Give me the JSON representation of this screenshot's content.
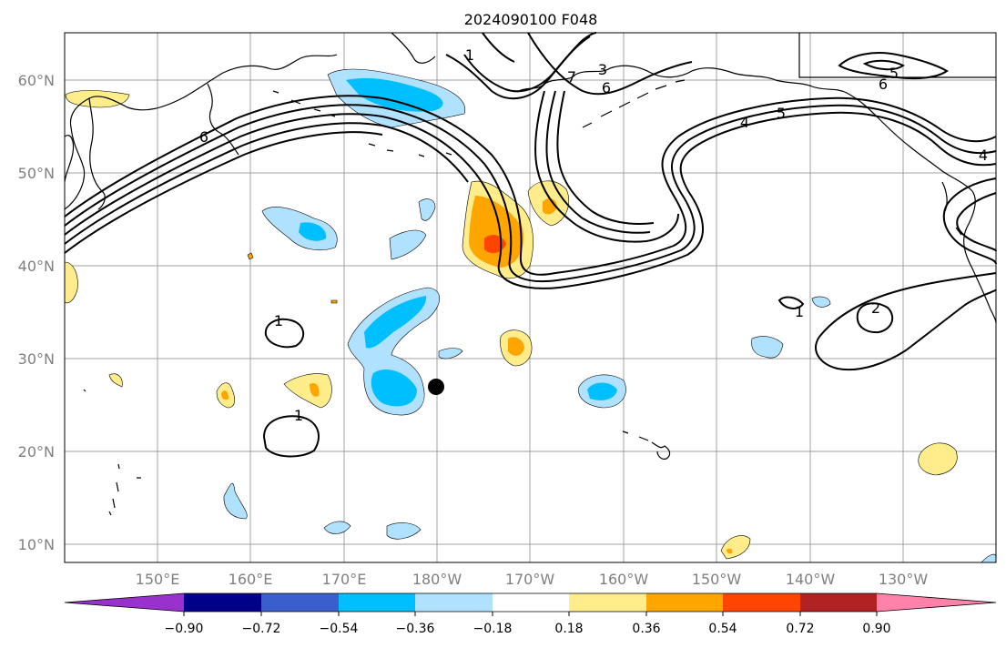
{
  "title": "2024090100 F048",
  "lat_labels": [
    "60°N",
    "50°N",
    "40°N",
    "30°N",
    "20°N",
    "10°N"
  ],
  "lon_labels": [
    "150°E",
    "160°E",
    "170°E",
    "180°W",
    "170°W",
    "160°W",
    "150°W",
    "140°W",
    "130°W"
  ],
  "colorbar": {
    "tick_labels": [
      "−0.90",
      "−0.72",
      "−0.54",
      "−0.36",
      "−0.18",
      "0.18",
      "0.36",
      "0.54",
      "0.72",
      "0.90"
    ],
    "colors": {
      "under": "#9932cc",
      "levels": [
        "#00008b",
        "#3a5fcd",
        "#00bfff",
        "#b0e2ff",
        "#ffffff",
        "#ffec8b",
        "#ffa500",
        "#ff4500",
        "#b22222"
      ],
      "over": "#ff82ab"
    }
  },
  "contour_labels": [
    "1",
    "1",
    "1",
    "1",
    "2",
    "3",
    "4",
    "4",
    "5",
    "5",
    "6",
    "6",
    "6",
    "7"
  ],
  "marker": {
    "name": "storm-position-marker",
    "lat": 27,
    "lon": 180
  }
}
